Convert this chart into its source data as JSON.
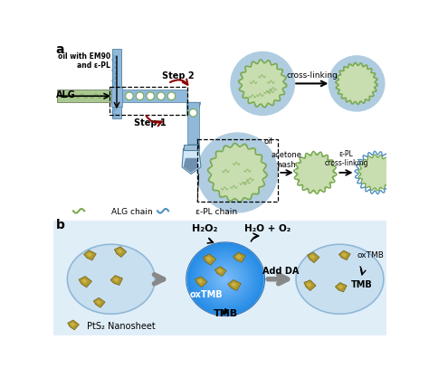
{
  "bg_color": "#ffffff",
  "panel_a_label": "a",
  "panel_b_label": "b",
  "alg_text": "ALG",
  "oil_text": "oil with EM90\nand ε-PL",
  "step1_text": "Step 1",
  "step2_text": "Step 2",
  "cross_link_text": "cross-linking",
  "acetone_wash_text": "acetone\nwash",
  "epl_cross_text": "ε-PL\ncross-linking",
  "oil_label": "oil",
  "alg_chain_text": "ALG chain",
  "epl_chain_text": "ε-PL chain",
  "h2o2_text": "H₂O₂",
  "h2o_o2_text": "H₂O + O₂",
  "oxtmb_text": "oxTMB",
  "tmb_text": "TMB",
  "add_da_text": "Add DA",
  "pts2_text": "PtS₂ Nanosheet",
  "green_color": "#7aaa50",
  "light_green": "#c8ddb0",
  "blue_epl_color": "#5090c0",
  "light_blue_halo": "#b0cce0",
  "dark_red": "#8b0000",
  "tube_color": "#90b8d8",
  "channel_green": "#a8c890",
  "gold_color": "#b09830",
  "dark_gold": "#706010",
  "gold_highlight": "#d8c850",
  "gray_arrow": "#888888",
  "blue_circle_grad1": "#70b8f0",
  "blue_circle_grad2": "#3080d0",
  "panel_b_bg": "#e8f4fc",
  "left_circle_color": "#c8dff0",
  "right_circle_color": "#c8dff0",
  "circle_edge": "#90b8d8"
}
